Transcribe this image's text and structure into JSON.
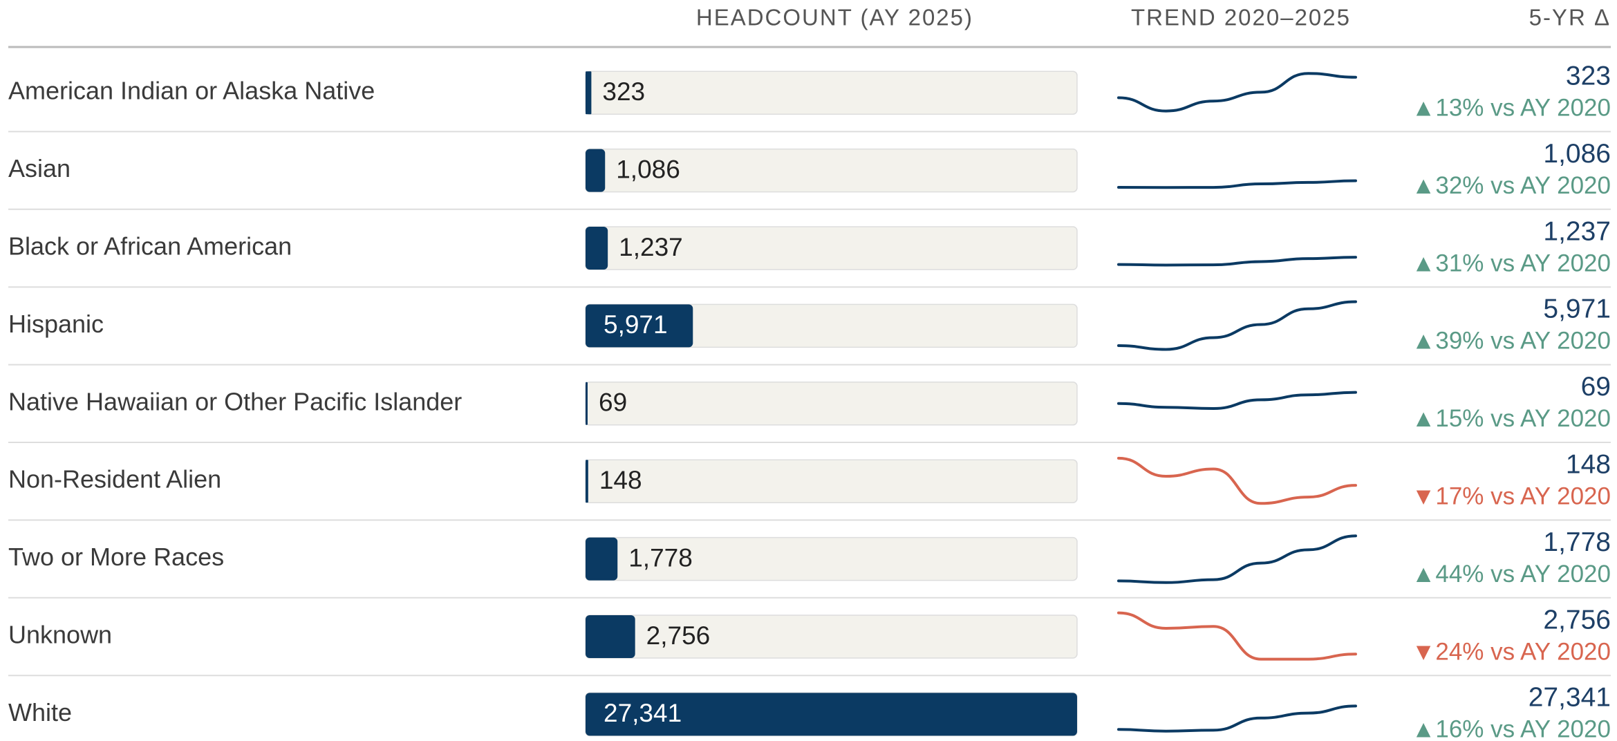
{
  "chart_data": {
    "type": "table",
    "columns": [
      "HEADCOUNT (AY 2025)",
      "TREND 2020–2025",
      "5-YR Δ"
    ],
    "xlim": [
      0,
      27341
    ],
    "up_color": "#5a9a86",
    "down_color": "#d8654f",
    "bar_color": "#0b3a63",
    "rows": [
      {
        "name": "American Indian or Alaska Native",
        "value": 323,
        "value_label": "323",
        "trend": [
          286,
          262,
          280,
          296,
          330,
          323
        ],
        "trend_ylim": [
          250,
          340
        ],
        "direction": "up",
        "delta_label": "▲13% vs AY 2020"
      },
      {
        "name": "Asian",
        "value": 1086,
        "value_label": "1,086",
        "trend": [
          823,
          815,
          820,
          960,
          1020,
          1086
        ],
        "trend_ylim": [
          500,
          2500
        ],
        "direction": "up",
        "delta_label": "▲32% vs AY 2020"
      },
      {
        "name": "Black or African American",
        "value": 1237,
        "value_label": "1,237",
        "trend": [
          944,
          920,
          930,
          1060,
          1180,
          1237
        ],
        "trend_ylim": [
          600,
          2600
        ],
        "direction": "up",
        "delta_label": "▲31% vs AY 2020"
      },
      {
        "name": "Hispanic",
        "value": 5971,
        "value_label": "5,971",
        "trend": [
          4296,
          4150,
          4600,
          5100,
          5700,
          5971
        ],
        "trend_ylim": [
          4100,
          6000
        ],
        "direction": "up",
        "delta_label": "▲39% vs AY 2020"
      },
      {
        "name": "Native Hawaiian or Other Pacific Islander",
        "value": 69,
        "value_label": "69",
        "trend": [
          60,
          57,
          56,
          63,
          67,
          69
        ],
        "trend_ylim": [
          40,
          80
        ],
        "direction": "up",
        "delta_label": "▲15% vs AY 2020"
      },
      {
        "name": "Non-Resident Alien",
        "value": 148,
        "value_label": "148",
        "trend": [
          178,
          158,
          166,
          128,
          135,
          148
        ],
        "trend_ylim": [
          125,
          180
        ],
        "direction": "down",
        "delta_label": "▼17% vs AY 2020"
      },
      {
        "name": "Two or More Races",
        "value": 1778,
        "value_label": "1,778",
        "trend": [
          1235,
          1215,
          1250,
          1450,
          1610,
          1778
        ],
        "trend_ylim": [
          1200,
          1800
        ],
        "direction": "up",
        "delta_label": "▲44% vs AY 2020"
      },
      {
        "name": "Unknown",
        "value": 2756,
        "value_label": "2,756",
        "trend": [
          3626,
          3300,
          3340,
          2650,
          2650,
          2756
        ],
        "trend_ylim": [
          2600,
          3650
        ],
        "direction": "down",
        "delta_label": "▼24% vs AY 2020"
      },
      {
        "name": "White",
        "value": 27341,
        "value_label": "27,341",
        "trend": [
          23570,
          23300,
          23450,
          25400,
          26200,
          27341
        ],
        "trend_ylim": [
          22000,
          30000
        ],
        "direction": "up",
        "delta_label": "▲16% vs AY 2020"
      }
    ]
  }
}
